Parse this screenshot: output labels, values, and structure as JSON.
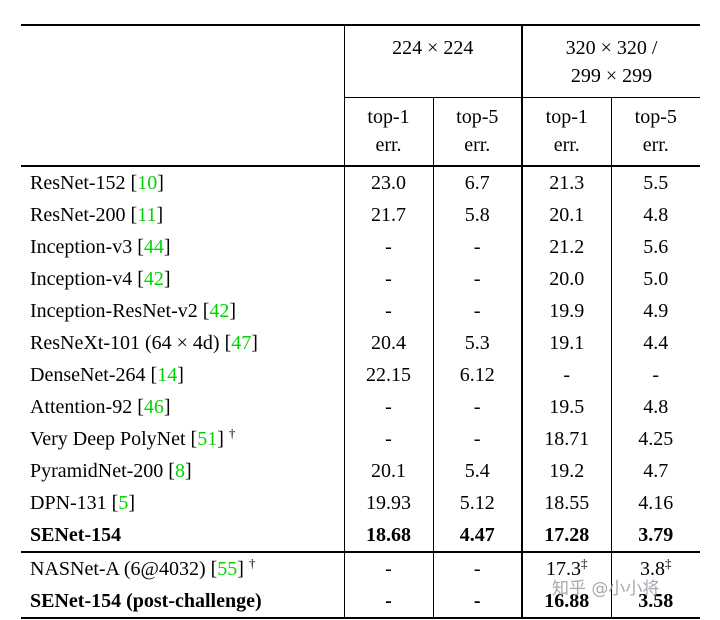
{
  "colors": {
    "citation_green": "#00d400",
    "watermark_gray": "#9aa0a6",
    "text": "#000000"
  },
  "table": {
    "header": {
      "group_224": "224 × 224",
      "group_320_line1": "320 × 320 /",
      "group_320_line2": "299 × 299",
      "sub": [
        {
          "l1": "top-1",
          "l2": "err."
        },
        {
          "l1": "top-5",
          "l2": "err."
        },
        {
          "l1": "top-1",
          "l2": "err."
        },
        {
          "l1": "top-5",
          "l2": "err."
        }
      ]
    },
    "rows": [
      {
        "name": "ResNet-152",
        "cite": "10",
        "dagger": false,
        "bold": false,
        "values": [
          "23.0",
          "6.7",
          "21.3",
          "5.5"
        ]
      },
      {
        "name": "ResNet-200",
        "cite": "11",
        "dagger": false,
        "bold": false,
        "values": [
          "21.7",
          "5.8",
          "20.1",
          "4.8"
        ]
      },
      {
        "name": "Inception-v3",
        "cite": "44",
        "dagger": false,
        "bold": false,
        "values": [
          "-",
          "-",
          "21.2",
          "5.6"
        ]
      },
      {
        "name": "Inception-v4",
        "cite": "42",
        "dagger": false,
        "bold": false,
        "values": [
          "-",
          "-",
          "20.0",
          "5.0"
        ]
      },
      {
        "name": "Inception-ResNet-v2",
        "cite": "42",
        "dagger": false,
        "bold": false,
        "values": [
          "-",
          "-",
          "19.9",
          "4.9"
        ]
      },
      {
        "name": "ResNeXt-101 (64 × 4d)",
        "cite": "47",
        "dagger": false,
        "bold": false,
        "values": [
          "20.4",
          "5.3",
          "19.1",
          "4.4"
        ]
      },
      {
        "name": "DenseNet-264",
        "cite": "14",
        "dagger": false,
        "bold": false,
        "values": [
          "22.15",
          "6.12",
          "-",
          "-"
        ]
      },
      {
        "name": "Attention-92",
        "cite": "46",
        "dagger": false,
        "bold": false,
        "values": [
          "-",
          "-",
          "19.5",
          "4.8"
        ]
      },
      {
        "name": "Very Deep PolyNet",
        "cite": "51",
        "dagger": true,
        "bold": false,
        "values": [
          "-",
          "-",
          "18.71",
          "4.25"
        ]
      },
      {
        "name": "PyramidNet-200",
        "cite": "8",
        "dagger": false,
        "bold": false,
        "values": [
          "20.1",
          "5.4",
          "19.2",
          "4.7"
        ]
      },
      {
        "name": "DPN-131",
        "cite": "5",
        "dagger": false,
        "bold": false,
        "values": [
          "19.93",
          "5.12",
          "18.55",
          "4.16"
        ]
      },
      {
        "name": "SENet-154",
        "cite": null,
        "dagger": false,
        "bold": true,
        "values": [
          "18.68",
          "4.47",
          "17.28",
          "3.79"
        ]
      },
      {
        "name": "NASNet-A (6@4032)",
        "cite": "55",
        "dagger": true,
        "bold": false,
        "section_start": true,
        "values": [
          "-",
          "-",
          "17.3‡",
          "3.8‡"
        ]
      },
      {
        "name": "SENet-154 (post-challenge)",
        "cite": null,
        "dagger": false,
        "bold": true,
        "values": [
          "-",
          "-",
          "16.88",
          "3.58"
        ]
      }
    ]
  },
  "watermark": {
    "text": "知乎 @小小将"
  }
}
